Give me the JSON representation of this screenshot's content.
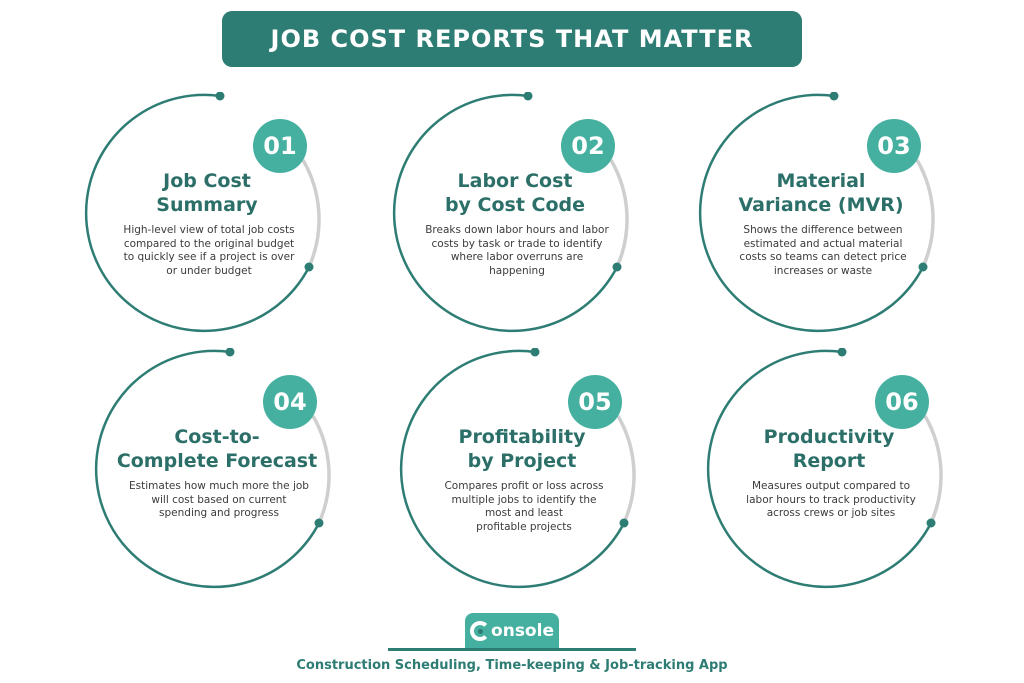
{
  "header": {
    "title": "JOB COST REPORTS THAT MATTER"
  },
  "colors": {
    "primary": "#2e7d74",
    "accent": "#45b0a0",
    "ring_gray": "#cfcfcf"
  },
  "cards": [
    {
      "number": "01",
      "title_line1": "Job Cost",
      "title_line2": "Summary",
      "desc": [
        "High-level view of total job costs",
        "compared to the original budget",
        "to quickly see if a project is over",
        "or under budget"
      ]
    },
    {
      "number": "02",
      "title_line1": "Labor Cost",
      "title_line2": "by Cost Code",
      "desc": [
        "Breaks down labor hours and labor",
        "costs by task or trade to identify",
        "where labor overruns are",
        "happening"
      ]
    },
    {
      "number": "03",
      "title_line1": "Material",
      "title_line2": "Variance (MVR)",
      "desc": [
        "Shows the difference between",
        "estimated and actual material",
        "costs so teams can detect price",
        "increases or waste"
      ]
    },
    {
      "number": "04",
      "title_line1": "Cost-to-",
      "title_line2": "Complete Forecast",
      "desc": [
        "Estimates how much more the job",
        "will cost based on current",
        "spending and progress",
        ""
      ]
    },
    {
      "number": "05",
      "title_line1": "Profitability",
      "title_line2": "by Project",
      "desc": [
        "Compares profit or loss across",
        "multiple jobs to identify the",
        "most and least",
        "profitable projects"
      ]
    },
    {
      "number": "06",
      "title_line1": "Productivity",
      "title_line2": "Report",
      "desc": [
        "Measures output compared to",
        "labor hours to track productivity",
        "across crews or job sites",
        ""
      ]
    }
  ],
  "footer": {
    "logo_text": "onsole",
    "logo_icon": "console-c-icon",
    "tagline": "Construction Scheduling, Time-keeping & Job-tracking App"
  }
}
